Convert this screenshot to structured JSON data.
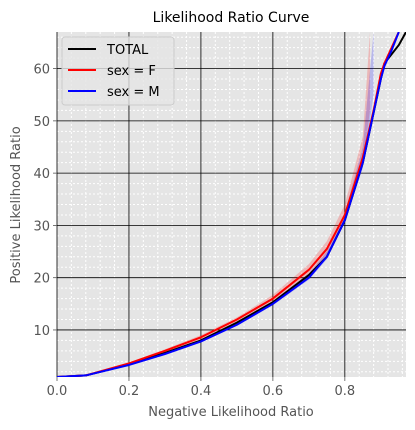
{
  "chart_data": {
    "type": "line",
    "title": "Likelihood Ratio Curve",
    "xlabel": "Negative Likelihood Ratio",
    "ylabel": "Positive Likelihood Ratio",
    "xlim": [
      0.0,
      0.97
    ],
    "ylim": [
      1.0,
      67.0
    ],
    "xticks": [
      0.0,
      0.2,
      0.4,
      0.6,
      0.8
    ],
    "xtick_labels": [
      "0.0",
      "0.2",
      "0.4",
      "0.6",
      "0.8"
    ],
    "yticks": [
      10,
      20,
      30,
      40,
      50,
      60
    ],
    "ytick_labels": [
      "10",
      "20",
      "30",
      "40",
      "50",
      "60"
    ],
    "grid": true,
    "minor_grid": true,
    "legend_position": "top-left",
    "background": "#e5e5e5",
    "series": [
      {
        "name": "TOTAL",
        "color": "#000000",
        "x": [
          0.0,
          0.08,
          0.2,
          0.3,
          0.4,
          0.5,
          0.6,
          0.7,
          0.75,
          0.8,
          0.85,
          0.9,
          0.91,
          0.95,
          0.97
        ],
        "y": [
          1.0,
          1.3,
          3.4,
          5.6,
          8.0,
          11.4,
          15.3,
          20.5,
          24.0,
          31.0,
          42.0,
          58.0,
          61.0,
          64.5,
          67.0
        ]
      },
      {
        "name": "sex = F",
        "color": "#ff0000",
        "x": [
          0.0,
          0.08,
          0.2,
          0.3,
          0.4,
          0.5,
          0.6,
          0.7,
          0.75,
          0.8,
          0.85,
          0.88,
          0.9,
          0.91,
          0.93,
          0.95
        ],
        "y": [
          1.0,
          1.3,
          3.6,
          6.0,
          8.6,
          12.0,
          16.0,
          21.5,
          25.5,
          32.0,
          43.0,
          52.0,
          59.0,
          61.0,
          64.0,
          67.0
        ]
      },
      {
        "name": "sex = M",
        "color": "#0000ff",
        "x": [
          0.0,
          0.08,
          0.2,
          0.3,
          0.4,
          0.5,
          0.6,
          0.7,
          0.75,
          0.8,
          0.85,
          0.9,
          0.91,
          0.93,
          0.95
        ],
        "y": [
          1.0,
          1.3,
          3.3,
          5.4,
          7.8,
          11.0,
          15.0,
          20.0,
          24.0,
          31.0,
          42.0,
          58.0,
          60.5,
          63.5,
          67.0
        ]
      }
    ],
    "bands": [
      {
        "series": "sex = F",
        "color": "#ff0000",
        "x": [
          0.0,
          0.08,
          0.2,
          0.3,
          0.4,
          0.5,
          0.6,
          0.7,
          0.75,
          0.8,
          0.85,
          0.87
        ],
        "y_low": [
          1.0,
          1.3,
          3.4,
          5.7,
          8.2,
          11.6,
          15.4,
          20.7,
          24.0,
          30.8,
          42.0,
          52.0
        ],
        "y_high": [
          1.0,
          1.4,
          3.8,
          6.3,
          9.0,
          12.4,
          16.7,
          22.6,
          27.0,
          34.0,
          47.0,
          67.0
        ]
      },
      {
        "series": "sex = M",
        "color": "#0000ff",
        "x": [
          0.0,
          0.08,
          0.2,
          0.3,
          0.4,
          0.5,
          0.6,
          0.7,
          0.75,
          0.8,
          0.85,
          0.88
        ],
        "y_low": [
          1.0,
          1.3,
          3.2,
          5.3,
          7.6,
          10.8,
          14.7,
          19.6,
          23.5,
          30.5,
          41.0,
          55.0
        ],
        "y_high": [
          1.0,
          1.3,
          3.5,
          5.7,
          8.1,
          11.4,
          15.5,
          20.8,
          25.0,
          32.5,
          45.0,
          67.0
        ]
      }
    ]
  }
}
